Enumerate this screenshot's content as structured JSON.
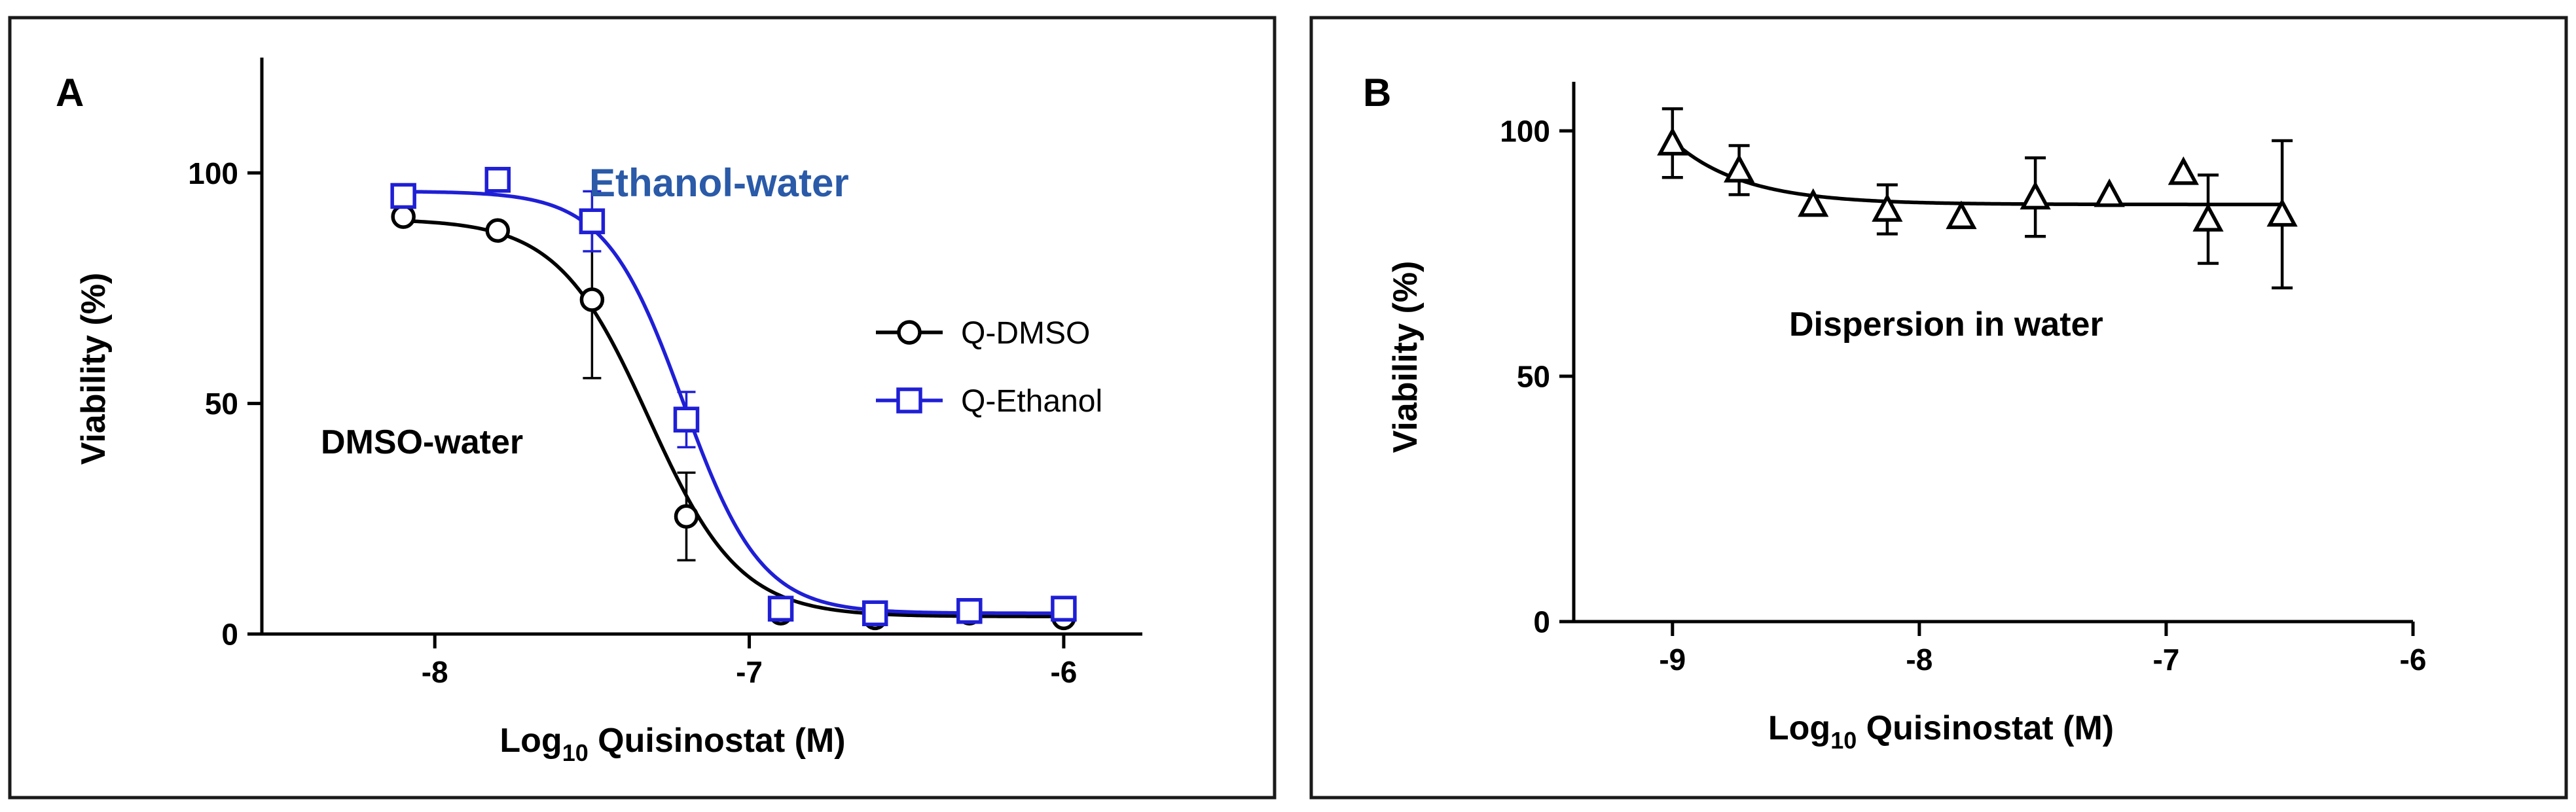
{
  "chart_data": [
    {
      "type": "scatter",
      "panel_label": "A",
      "title": "",
      "xlabel_prefix": "Log",
      "xlabel_subscript": "10",
      "xlabel_suffix": " Quisinostat (M)",
      "ylabel": "Viability (%)",
      "xlim": [
        -8.55,
        -5.75
      ],
      "ylim": [
        0,
        125
      ],
      "xticks": [
        -8,
        -7,
        -6
      ],
      "xtick_labels": [
        "-8",
        "-7",
        "-6"
      ],
      "yticks": [
        0,
        50,
        100
      ],
      "ytick_labels": [
        "0",
        "50",
        "100"
      ],
      "grid": false,
      "legend_position": "right",
      "series": [
        {
          "name": "Q-DMSO",
          "marker": "circle",
          "color": "#000000",
          "x": [
            -8.1,
            -7.8,
            -7.5,
            -7.2,
            -6.9,
            -6.6,
            -6.3,
            -6.0
          ],
          "y": [
            90.5,
            87.5,
            72.5,
            25.5,
            4.5,
            3.5,
            4.5,
            3.5
          ],
          "error": [
            0,
            0,
            17,
            9.5,
            0,
            0,
            0,
            0
          ],
          "fit": {
            "model": "sigmoidal dose-response",
            "top": 90,
            "bottom": 3.8,
            "log_ic50": -7.32,
            "hill": -3.0
          },
          "annotation": "DMSO-water",
          "annotation_color": "#000000"
        },
        {
          "name": "Q-Ethanol",
          "marker": "square",
          "color": "#1f1fd6",
          "x": [
            -8.1,
            -7.8,
            -7.5,
            -7.2,
            -6.9,
            -6.6,
            -6.3,
            -6.0
          ],
          "y": [
            95,
            98.5,
            89.5,
            46.5,
            5.5,
            4.5,
            5,
            5.5
          ],
          "error": [
            0,
            0,
            6.5,
            6,
            0,
            0,
            0,
            0
          ],
          "fit": {
            "model": "sigmoidal dose-response",
            "top": 96,
            "bottom": 4.5,
            "log_ic50": -7.21,
            "hill": -3.5
          },
          "annotation": "Ethanol-water",
          "annotation_color": "#2a5aa8"
        }
      ]
    },
    {
      "type": "scatter",
      "panel_label": "B",
      "title": "",
      "xlabel_prefix": "Log",
      "xlabel_subscript": "10",
      "xlabel_suffix": " Quisinostat (M)",
      "ylabel": "Viability (%)",
      "xlim": [
        -9.4,
        -6.0
      ],
      "ylim": [
        0,
        110
      ],
      "xticks": [
        -9,
        -8,
        -7,
        -6
      ],
      "xtick_labels": [
        "-9",
        "-8",
        "-7",
        "-6"
      ],
      "yticks": [
        0,
        50,
        100
      ],
      "ytick_labels": [
        "0",
        "50",
        "100"
      ],
      "grid": false,
      "annotation": "Dispersion in water",
      "series": [
        {
          "name": "Dispersion in water",
          "marker": "triangle",
          "color": "#000000",
          "x": [
            -9.0,
            -8.73,
            -8.43,
            -8.13,
            -7.83,
            -7.53,
            -7.23,
            -6.93,
            -6.83,
            -6.53
          ],
          "y": [
            97.5,
            92,
            85,
            84,
            82.5,
            86.5,
            87,
            91.5,
            82,
            83
          ],
          "error": [
            7,
            5,
            0,
            5,
            0,
            8,
            0,
            0,
            9,
            15
          ],
          "fit": {
            "model": "exponential decay",
            "plateau": 85,
            "span": 13,
            "x0": -9.0,
            "k": 3.5
          }
        }
      ]
    }
  ]
}
